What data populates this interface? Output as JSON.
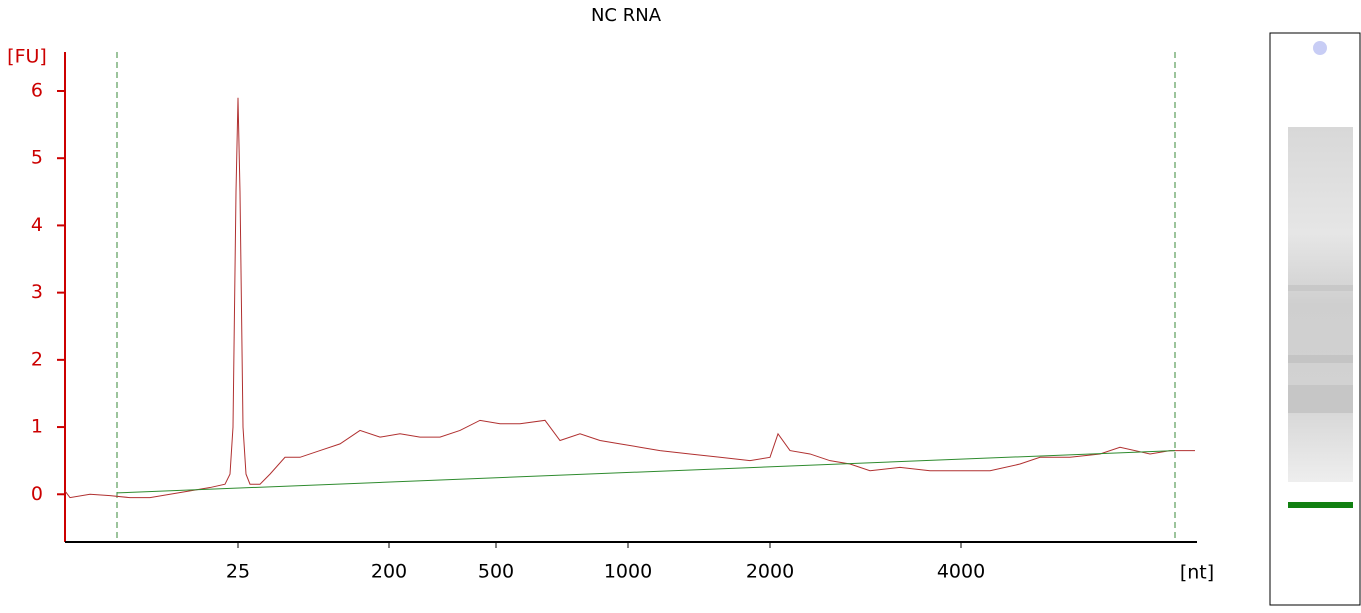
{
  "chart_data": {
    "type": "line",
    "title": "NC RNA",
    "y_label": "[FU]",
    "x_label": "[nt]",
    "xlim": [
      0,
      1132
    ],
    "ylim": [
      -0.71,
      6.58
    ],
    "xticks": [
      {
        "value": 173,
        "label": "25"
      },
      {
        "value": 324,
        "label": "200"
      },
      {
        "value": 431,
        "label": "500"
      },
      {
        "value": 563,
        "label": "1000"
      },
      {
        "value": 705,
        "label": "2000"
      },
      {
        "value": 896,
        "label": "4000"
      }
    ],
    "yticks": [
      0,
      1,
      2,
      3,
      4,
      5,
      6
    ],
    "markers": [
      52,
      1110
    ],
    "series": [
      {
        "color": "#b03030",
        "x": [
          0,
          5,
          25,
          45,
          65,
          85,
          105,
          125,
          145,
          160,
          165,
          168,
          171,
          173,
          175,
          178,
          181,
          185,
          195,
          205,
          220,
          235,
          255,
          275,
          295,
          315,
          335,
          355,
          375,
          395,
          415,
          435,
          455,
          480,
          495,
          515,
          535,
          555,
          575,
          595,
          625,
          655,
          685,
          705,
          713,
          725,
          745,
          765,
          785,
          805,
          835,
          865,
          895,
          925,
          955,
          975,
          1005,
          1035,
          1055,
          1085,
          1105,
          1130
        ],
        "values": [
          0.05,
          -0.05,
          0,
          -0.02,
          -0.05,
          -0.05,
          0,
          0.05,
          0.1,
          0.15,
          0.3,
          1,
          4.5,
          5.9,
          4.5,
          1,
          0.3,
          0.15,
          0.15,
          0.3,
          0.55,
          0.55,
          0.65,
          0.75,
          0.95,
          0.85,
          0.9,
          0.85,
          0.85,
          0.95,
          1.1,
          1.05,
          1.05,
          1.1,
          0.8,
          0.9,
          0.8,
          0.75,
          0.7,
          0.65,
          0.6,
          0.55,
          0.5,
          0.55,
          0.9,
          0.65,
          0.6,
          0.5,
          0.45,
          0.35,
          0.4,
          0.35,
          0.35,
          0.35,
          0.45,
          0.55,
          0.55,
          0.6,
          0.7,
          0.6,
          0.65,
          0.65
        ]
      },
      {
        "color": "#2e8b2e",
        "x": [
          52,
          1110
        ],
        "values": [
          0.02,
          0.65
        ]
      }
    ]
  }
}
